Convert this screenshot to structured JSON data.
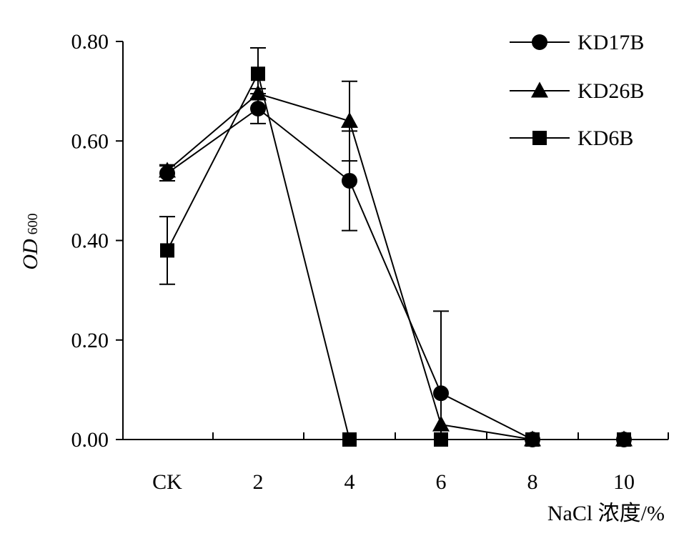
{
  "chart_data": {
    "type": "line",
    "categories": [
      "CK",
      "2",
      "4",
      "6",
      "8",
      "10"
    ],
    "ylabel_main": "OD",
    "ylabel_sub": "600",
    "xlabel": "NaCl 浓度/%",
    "ylim": [
      0,
      0.8
    ],
    "yticks": [
      "0.00",
      "0.20",
      "0.40",
      "0.60",
      "0.80"
    ],
    "grid": false,
    "legend_position": "top-right",
    "series": [
      {
        "name": "KD17B",
        "marker": "circle",
        "values": [
          0.535,
          0.665,
          0.52,
          0.093,
          0,
          0
        ],
        "errors": [
          0.015,
          0.03,
          0.1,
          0.165,
          0,
          0
        ]
      },
      {
        "name": "KD26B",
        "marker": "triangle",
        "values": [
          0.54,
          0.695,
          0.64,
          0.03,
          0,
          0
        ],
        "errors": [
          0.012,
          0.01,
          0.08,
          0,
          0,
          0
        ]
      },
      {
        "name": "KD6B",
        "marker": "square",
        "values": [
          0.38,
          0.735,
          0,
          0,
          0,
          0
        ],
        "errors": [
          0.068,
          0.052,
          0,
          0,
          0,
          0
        ]
      }
    ]
  }
}
